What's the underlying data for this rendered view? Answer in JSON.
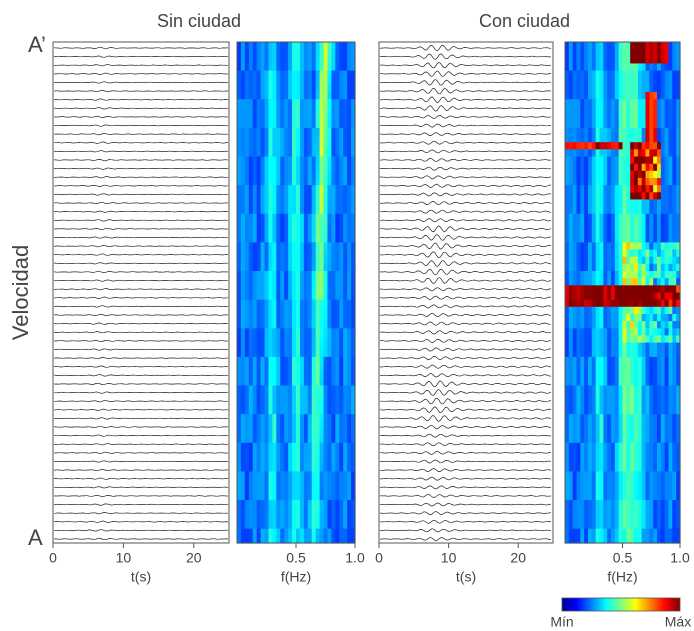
{
  "chart_data": [
    {
      "type": "traces",
      "title": "Sin ciudad",
      "xlabel": "t(s)",
      "xlim": [
        0,
        25
      ],
      "xticks": [
        0,
        10,
        20
      ],
      "ylabel": "Velocidad",
      "top_label": "A’",
      "bottom_label": "A"
    },
    {
      "type": "heatmap",
      "xlabel": "f(Hz)",
      "xlim": [
        0,
        1
      ],
      "xticks": [
        0.5,
        {
          "value": 1,
          "label": "1.0"
        }
      ]
    },
    {
      "type": "traces",
      "title": "Con ciudad",
      "xlabel": "t(s)",
      "xlim": [
        0,
        25
      ],
      "xticks": [
        0,
        10,
        20
      ]
    },
    {
      "type": "heatmap",
      "xlabel": "f(Hz)",
      "xlim": [
        0,
        1
      ],
      "xticks": [
        0.5,
        {
          "value": 1,
          "label": "1.0"
        }
      ],
      "colorbar": {
        "min_label": "Mín",
        "max_label": "Máx"
      }
    }
  ]
}
